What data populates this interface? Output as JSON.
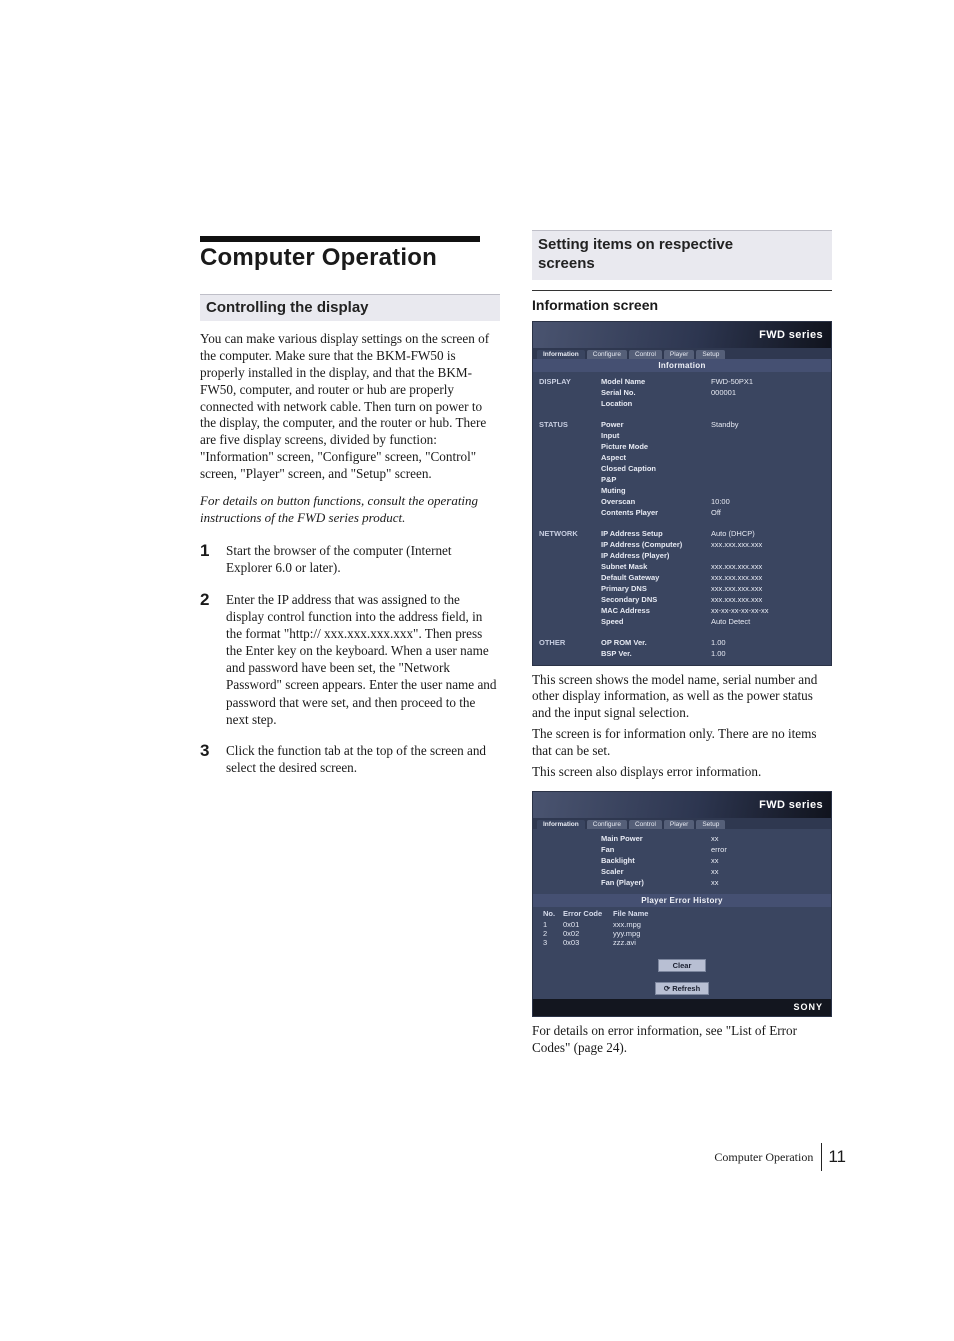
{
  "page": {
    "main_title": "Computer Operation",
    "footer_label": "Computer Operation",
    "footer_page": "11"
  },
  "left": {
    "section_heading": "Controlling the display",
    "intro": "You can make various display settings on the screen of the computer. Make sure that the BKM-FW50 is properly installed in the display, and that the BKM-FW50, computer, and router or hub are properly connected with network cable. Then turn on power to the display, the computer, and the router or hub. There are five display screens, divided by function: \"Information\" screen, \"Configure\" screen, \"Control\" screen, \"Player\" screen, and \"Setup\" screen.",
    "italic_note": "For details on button functions, consult the operating instructions of the FWD series product.",
    "steps": [
      "Start the browser of the computer (Internet Explorer 6.0 or later).",
      "Enter the IP address that was assigned to the display control function into the address field, in the format \"http:// xxx.xxx.xxx.xxx\". Then press the Enter key on the keyboard. When a user name and password have been set, the \"Network Password\" screen appears. Enter the user name and password that were set, and then proceed to the next step.",
      "Click the function tab at the top of the screen and select the desired screen."
    ]
  },
  "right": {
    "section_heading_l1": "Setting items on respective",
    "section_heading_l2": "screens",
    "subhead_info": "Information screen",
    "para_after_shot1_a": "This screen shows the model name, serial number and other display information, as well as the power status and the input signal selection.",
    "para_after_shot1_b": "The screen is for information only. There are no items that can be set.",
    "para_after_shot1_c": "This screen also displays error information.",
    "para_after_shot2": "For details on error information, see \"List of Error Codes\" (page 24)."
  },
  "shot_common": {
    "banner": "FWD series",
    "tabs": [
      "Information",
      "Configure",
      "Control",
      "Player",
      "Setup"
    ],
    "sony": "SONY"
  },
  "shot1": {
    "section_title": "Information",
    "groups": [
      {
        "label": "DISPLAY",
        "rows": [
          {
            "field": "Model Name",
            "val": "FWD-50PX1"
          },
          {
            "field": "Serial No.",
            "val": "000001"
          },
          {
            "field": "Location",
            "val": ""
          }
        ]
      },
      {
        "label": "STATUS",
        "rows": [
          {
            "field": "Power",
            "val": "Standby"
          },
          {
            "field": "Input",
            "val": ""
          },
          {
            "field": "Picture Mode",
            "val": ""
          },
          {
            "field": "Aspect",
            "val": ""
          },
          {
            "field": "Closed Caption",
            "val": ""
          },
          {
            "field": "P&P",
            "val": ""
          },
          {
            "field": "Muting",
            "val": ""
          },
          {
            "field": "Overscan",
            "val": "10:00"
          },
          {
            "field": "Contents Player",
            "val": "Off"
          }
        ]
      },
      {
        "label": "NETWORK",
        "rows": [
          {
            "field": "IP Address Setup",
            "val": "Auto (DHCP)"
          },
          {
            "field": "IP Address (Computer)",
            "val": "xxx.xxx.xxx.xxx"
          },
          {
            "field": "IP Address (Player)",
            "val": ""
          },
          {
            "field": "Subnet Mask",
            "val": "xxx.xxx.xxx.xxx"
          },
          {
            "field": "Default Gateway",
            "val": "xxx.xxx.xxx.xxx"
          },
          {
            "field": "Primary DNS",
            "val": "xxx.xxx.xxx.xxx"
          },
          {
            "field": "Secondary DNS",
            "val": "xxx.xxx.xxx.xxx"
          },
          {
            "field": "MAC Address",
            "val": "xx-xx-xx-xx-xx-xx"
          },
          {
            "field": "Speed",
            "val": "Auto Detect"
          }
        ]
      },
      {
        "label": "OTHER",
        "rows": [
          {
            "field": "OP ROM Ver.",
            "val": "1.00"
          },
          {
            "field": "BSP Ver.",
            "val": "1.00"
          }
        ]
      }
    ]
  },
  "shot2": {
    "section_title_top": "",
    "lamp_rows": [
      {
        "field": "Main Power",
        "val": "xx"
      },
      {
        "field": "Fan",
        "val": "error"
      },
      {
        "field": "Backlight",
        "val": "xx"
      },
      {
        "field": "Scaler",
        "val": "xx"
      },
      {
        "field": "Fan (Player)",
        "val": "xx"
      }
    ],
    "error_section_title": "Player Error History",
    "error_headers": {
      "c1": "No.",
      "c2": "Error Code",
      "c3": "File Name"
    },
    "error_rows": [
      {
        "c1": "1",
        "c2": "0x01",
        "c3": "xxx.mpg"
      },
      {
        "c1": "2",
        "c2": "0x02",
        "c3": "yyy.mpg"
      },
      {
        "c1": "3",
        "c2": "0x03",
        "c3": "zzz.avi"
      }
    ],
    "btn_clear": "Clear",
    "btn_refresh": "Refresh"
  },
  "style": {
    "page_bg": "#ffffff",
    "text_color": "#1a1a1a",
    "shaded_bg": "#e9e9ef",
    "shot_bg": "#3a4560",
    "shot_banner_grad_a": "#4a5470",
    "shot_banner_grad_b": "#10131d",
    "body_font_size_pt": 10,
    "title_font_size_pt": 18
  }
}
